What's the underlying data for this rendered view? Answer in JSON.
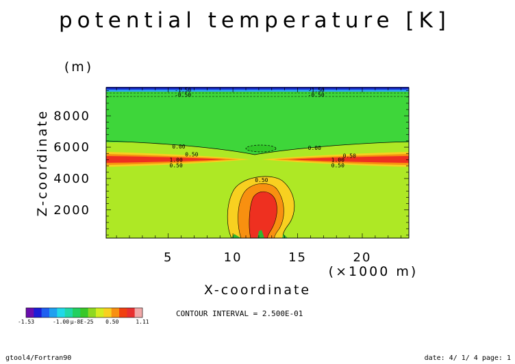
{
  "title": "potential temperature [K]",
  "chart_data": {
    "type": "heatmap",
    "title": "potential temperature [K]",
    "xlabel": "X-coordinate",
    "x_unit": "(×1000 m)",
    "ylabel": "Z-coordinate",
    "y_unit": "(m)",
    "xlim": [
      0.2,
      23.6
    ],
    "ylim": [
      200,
      9800
    ],
    "x_ticks": [
      {
        "value": 5,
        "label": "5"
      },
      {
        "value": 10,
        "label": "10"
      },
      {
        "value": 15,
        "label": "15"
      },
      {
        "value": 20,
        "label": "20"
      }
    ],
    "y_ticks": [
      {
        "value": 2000,
        "label": "2000"
      },
      {
        "value": 4000,
        "label": "4000"
      },
      {
        "value": 6000,
        "label": "6000"
      },
      {
        "value": 8000,
        "label": "8000"
      }
    ],
    "contour_labels": [
      {
        "text": "-1.50",
        "x": 5.5,
        "y": 9650
      },
      {
        "text": "-0.50",
        "x": 5.5,
        "y": 9350
      },
      {
        "text": "-1.50",
        "x": 15.8,
        "y": 9650
      },
      {
        "text": "-0.50",
        "x": 15.8,
        "y": 9350
      },
      {
        "text": "0.00",
        "x": 5.3,
        "y": 6050
      },
      {
        "text": "0.00",
        "x": 15.8,
        "y": 5950
      },
      {
        "text": "0.50",
        "x": 6.3,
        "y": 5550
      },
      {
        "text": "0.50",
        "x": 18.5,
        "y": 5450
      },
      {
        "text": "1.00",
        "x": 5.1,
        "y": 5200
      },
      {
        "text": "1.00",
        "x": 17.6,
        "y": 5200
      },
      {
        "text": "0.50",
        "x": 5.1,
        "y": 4850
      },
      {
        "text": "0.50",
        "x": 17.6,
        "y": 4850
      },
      {
        "text": "0.50",
        "x": 11.7,
        "y": 3900
      }
    ],
    "contour_interval_text": "CONTOUR INTERVAL = 2.500E-01",
    "colorbar": {
      "colors": [
        "#6a0dad",
        "#1c1cd6",
        "#1e5ff0",
        "#1ea0f0",
        "#20d8e8",
        "#20d8a8",
        "#22d060",
        "#38c828",
        "#8ed820",
        "#d4ec20",
        "#f8d020",
        "#f89010",
        "#f04010",
        "#e83030",
        "#f0a8a8"
      ],
      "tick_labels": [
        "-1.53",
        "-1.00",
        "µ-8E-25",
        "0.50",
        "1.11"
      ]
    }
  },
  "footer": {
    "left": "gtool4/Fortran90",
    "right": "date: 4/ 1/ 4 page: 1"
  }
}
